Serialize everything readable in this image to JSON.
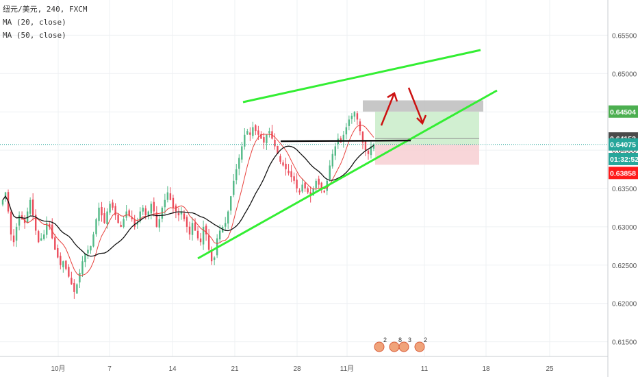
{
  "legend": {
    "symbol_line": "纽元/美元, 240, FXCM",
    "ma20_label": "MA (20, close)",
    "ma50_label": "MA (50, close)"
  },
  "colors": {
    "up": "#53b987",
    "down": "#eb4d5c",
    "ma20": "#e8413c",
    "ma50": "#111111",
    "trendline": "#33ee33",
    "arrow": "#cc1111",
    "target_zone": "#c9ecc9",
    "stop_zone": "#f7cfd2",
    "target_band": "#bdbdbd",
    "last_price_line": "#26a69a"
  },
  "chart_data": {
    "type": "candlestick",
    "title": "纽元/美元, 240, FXCM",
    "indicators": [
      "MA (20, close)",
      "MA (50, close)"
    ],
    "ylim": [
      0.6104,
      0.6596
    ],
    "y_ticks": [
      "0.65500",
      "0.65000",
      "0.64500",
      "0.64000",
      "0.63500",
      "0.63000",
      "0.62500",
      "0.62000",
      "0.61500"
    ],
    "x_ticks": [
      "10月",
      "7",
      "14",
      "21",
      "28",
      "11月",
      "11",
      "18",
      "25"
    ],
    "grid": true,
    "price_labels": [
      {
        "label": "0.64504",
        "value": 0.64504,
        "color": "#4caf50"
      },
      {
        "label": "0.64153",
        "value": 0.64153,
        "color": "#4a4a4a"
      },
      {
        "label": "0.64075",
        "value": 0.64075,
        "color": "#26a69a"
      },
      {
        "label": "01:32:52",
        "value": 0.63885,
        "color": "#26a69a"
      },
      {
        "label": "0.63858",
        "value": 0.63703,
        "color": "#ff1a1a"
      }
    ],
    "event_badges": [
      "2",
      "8",
      "3",
      "2"
    ],
    "approximate_closes": [
      0.6335,
      0.6345,
      0.632,
      0.629,
      0.628,
      0.63,
      0.6315,
      0.631,
      0.6305,
      0.632,
      0.6335,
      0.6315,
      0.6295,
      0.628,
      0.6285,
      0.629,
      0.6305,
      0.63,
      0.6285,
      0.627,
      0.626,
      0.625,
      0.6255,
      0.6245,
      0.6235,
      0.6225,
      0.6215,
      0.6225,
      0.624,
      0.6255,
      0.6265,
      0.627,
      0.6275,
      0.629,
      0.631,
      0.6325,
      0.6315,
      0.6305,
      0.632,
      0.633,
      0.6325,
      0.6315,
      0.6305,
      0.63,
      0.631,
      0.632,
      0.6315,
      0.631,
      0.63,
      0.6305,
      0.632,
      0.6325,
      0.6315,
      0.632,
      0.633,
      0.632,
      0.63,
      0.631,
      0.6325,
      0.6335,
      0.6345,
      0.6335,
      0.6325,
      0.632,
      0.6315,
      0.632,
      0.631,
      0.63,
      0.629,
      0.6305,
      0.6295,
      0.6285,
      0.628,
      0.63,
      0.629,
      0.627,
      0.6255,
      0.626,
      0.6285,
      0.6295,
      0.63,
      0.6305,
      0.632,
      0.634,
      0.636,
      0.6375,
      0.639,
      0.6405,
      0.642,
      0.6425,
      0.642,
      0.643,
      0.6425,
      0.642,
      0.6415,
      0.641,
      0.642,
      0.6425,
      0.6415,
      0.6405,
      0.6395,
      0.6385,
      0.638,
      0.6375,
      0.637,
      0.6365,
      0.636,
      0.635,
      0.6345,
      0.6355,
      0.635,
      0.6345,
      0.634,
      0.635,
      0.636,
      0.6355,
      0.635,
      0.6345,
      0.636,
      0.638,
      0.6395,
      0.6405,
      0.6415,
      0.641,
      0.642,
      0.643,
      0.644,
      0.6445,
      0.645,
      0.644,
      0.6425,
      0.641,
      0.64,
      0.6395,
      0.6405,
      0.6408
    ]
  }
}
